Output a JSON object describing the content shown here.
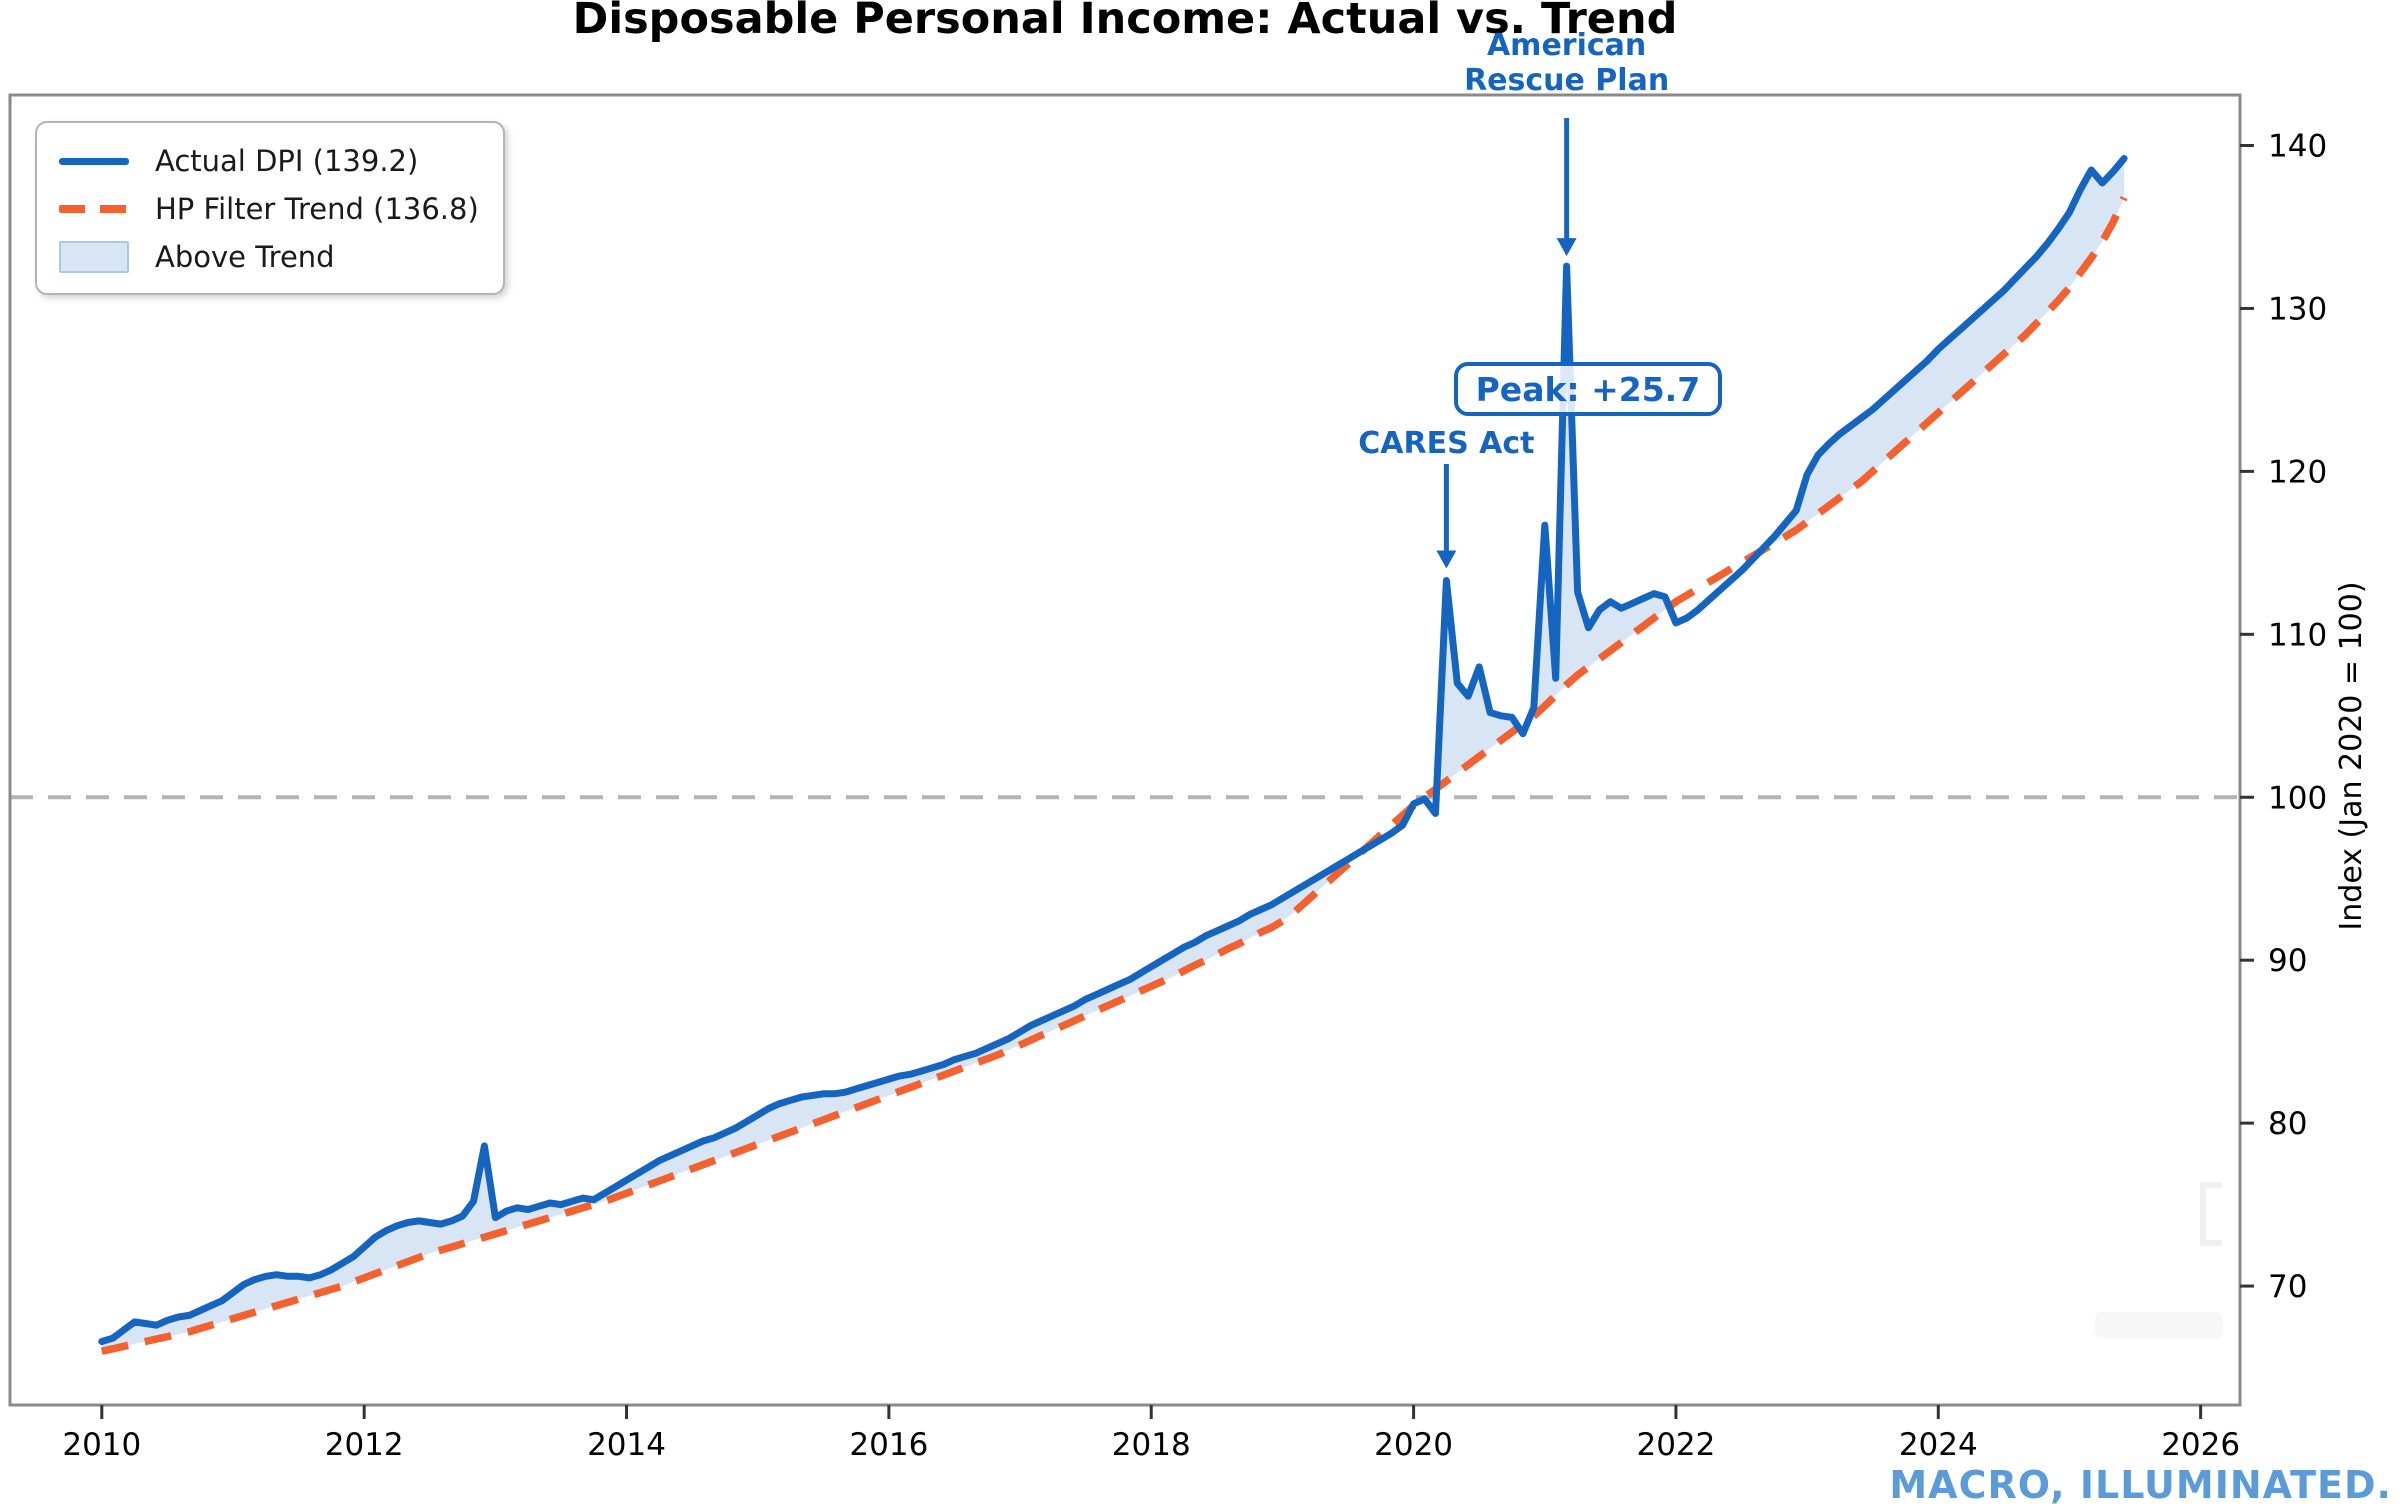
{
  "title": "Disposable Personal Income: Actual vs. Trend",
  "watermark": "MACRO, ILLUMINATED.",
  "colors": {
    "actual_line": "#1565C0",
    "trend_line": "#F4612E",
    "above_trend_fill": "#D8E5F5",
    "annotation_blue": "#1565C0",
    "baseline_gray": "#B3B3B3",
    "frame_gray": "#8A8A8A",
    "watermark_blue": "#5B9BD8",
    "tick_text": "#000000"
  },
  "legend": {
    "items": [
      {
        "label": "Actual DPI (139.2)",
        "swatch": "solid-blue-line"
      },
      {
        "label": "HP Filter Trend (136.8)",
        "swatch": "dashed-orange-line"
      },
      {
        "label": "Above Trend",
        "swatch": "light-blue-patch"
      }
    ]
  },
  "y_axis": {
    "label": "Index (Jan 2020 = 100)",
    "ticks": [
      70,
      80,
      90,
      100,
      110,
      120,
      130,
      140
    ],
    "side": "right"
  },
  "x_axis": {
    "ticks": [
      2010,
      2012,
      2014,
      2016,
      2018,
      2020,
      2022,
      2024,
      2026
    ]
  },
  "annotations": {
    "arp": {
      "line1": "American",
      "line2": "Rescue Plan",
      "target_month": "2021-03",
      "target_value": 132.6
    },
    "cares": {
      "label": "CARES Act",
      "target_month": "2020-04",
      "target_value": 113.3
    },
    "peak": {
      "label": "Peak: +25.7",
      "gap_value": 25.7,
      "target_month": "2021-03"
    }
  },
  "chart_data": {
    "type": "line",
    "title": "Disposable Personal Income: Actual vs. Trend",
    "xlabel": "",
    "ylabel": "Index (Jan 2020 = 100)",
    "frequency": "monthly",
    "x_start": 2010.0,
    "x_end": 2025.4167,
    "xlim": [
      2009.3,
      2026.3
    ],
    "ylim": [
      62.7,
      143.1
    ],
    "x_ticks": [
      2010,
      2012,
      2014,
      2016,
      2018,
      2020,
      2022,
      2024,
      2026
    ],
    "y_ticks": [
      70,
      80,
      90,
      100,
      110,
      120,
      130,
      140
    ],
    "baseline": {
      "value": 100,
      "style": "gray-dashed"
    },
    "grid": false,
    "legend_position": "upper-left",
    "fill_between": {
      "label": "Above Trend",
      "condition": "actual > trend",
      "color": "#D8E5F5"
    },
    "series": [
      {
        "name": "Actual DPI (139.2)",
        "color": "#1565C0",
        "style": "solid",
        "last_value": 139.2,
        "values": [
          66.6,
          66.8,
          67.3,
          67.8,
          67.7,
          67.6,
          67.9,
          68.1,
          68.2,
          68.5,
          68.8,
          69.1,
          69.6,
          70.1,
          70.4,
          70.6,
          70.7,
          70.6,
          70.6,
          70.5,
          70.7,
          71.0,
          71.4,
          71.8,
          72.4,
          73.0,
          73.4,
          73.7,
          73.9,
          74.0,
          73.9,
          73.8,
          74.0,
          74.3,
          75.2,
          78.6,
          74.2,
          74.6,
          74.8,
          74.7,
          74.9,
          75.1,
          75.0,
          75.2,
          75.4,
          75.3,
          75.7,
          76.1,
          76.5,
          76.9,
          77.3,
          77.7,
          78.0,
          78.3,
          78.6,
          78.9,
          79.1,
          79.4,
          79.7,
          80.1,
          80.5,
          80.9,
          81.2,
          81.4,
          81.6,
          81.7,
          81.8,
          81.8,
          81.9,
          82.1,
          82.3,
          82.5,
          82.7,
          82.9,
          83.0,
          83.2,
          83.4,
          83.6,
          83.9,
          84.1,
          84.3,
          84.6,
          84.9,
          85.2,
          85.6,
          86.0,
          86.3,
          86.6,
          86.9,
          87.2,
          87.6,
          87.9,
          88.2,
          88.5,
          88.8,
          89.2,
          89.6,
          90.0,
          90.4,
          90.8,
          91.1,
          91.5,
          91.8,
          92.1,
          92.4,
          92.8,
          93.1,
          93.4,
          93.8,
          94.2,
          94.6,
          95.0,
          95.4,
          95.8,
          96.2,
          96.6,
          97.0,
          97.4,
          97.8,
          98.3,
          99.6,
          99.9,
          99.0,
          113.3,
          107.0,
          106.2,
          108.0,
          105.2,
          105.0,
          104.9,
          103.9,
          105.5,
          116.7,
          107.3,
          132.6,
          112.6,
          110.4,
          111.5,
          112.0,
          111.6,
          111.9,
          112.2,
          112.5,
          112.3,
          110.7,
          111.0,
          111.5,
          112.1,
          112.7,
          113.3,
          113.9,
          114.6,
          115.3,
          116.0,
          116.8,
          117.6,
          119.8,
          121.0,
          121.7,
          122.3,
          122.8,
          123.3,
          123.8,
          124.4,
          125.0,
          125.6,
          126.2,
          126.8,
          127.5,
          128.1,
          128.7,
          129.3,
          129.9,
          130.5,
          131.1,
          131.8,
          132.5,
          133.2,
          134.0,
          134.9,
          135.9,
          137.3,
          138.5,
          137.7,
          138.4,
          139.2
        ]
      },
      {
        "name": "HP Filter Trend (136.8)",
        "color": "#F4612E",
        "style": "dashed",
        "last_value": 136.8,
        "values": [
          66.0,
          66.15,
          66.3,
          66.45,
          66.6,
          66.75,
          66.9,
          67.05,
          67.2,
          67.4,
          67.6,
          67.8,
          68.0,
          68.2,
          68.4,
          68.6,
          68.8,
          69.0,
          69.2,
          69.4,
          69.6,
          69.8,
          70.0,
          70.25,
          70.5,
          70.75,
          71.0,
          71.25,
          71.5,
          71.75,
          72.0,
          72.2,
          72.4,
          72.6,
          72.8,
          73.0,
          73.2,
          73.4,
          73.6,
          73.8,
          74.0,
          74.2,
          74.4,
          74.6,
          74.8,
          75.0,
          75.2,
          75.45,
          75.7,
          75.95,
          76.2,
          76.45,
          76.7,
          76.95,
          77.2,
          77.45,
          77.7,
          77.95,
          78.2,
          78.45,
          78.7,
          78.95,
          79.2,
          79.45,
          79.7,
          79.95,
          80.2,
          80.45,
          80.7,
          80.95,
          81.2,
          81.45,
          81.7,
          81.95,
          82.2,
          82.45,
          82.7,
          82.95,
          83.2,
          83.45,
          83.7,
          83.95,
          84.2,
          84.5,
          84.8,
          85.1,
          85.4,
          85.7,
          86.0,
          86.3,
          86.6,
          86.9,
          87.2,
          87.5,
          87.8,
          88.1,
          88.4,
          88.7,
          89.0,
          89.35,
          89.7,
          90.0,
          90.35,
          90.7,
          91.0,
          91.35,
          91.7,
          92.0,
          92.4,
          92.9,
          93.5,
          94.1,
          94.7,
          95.3,
          95.9,
          96.5,
          97.1,
          97.7,
          98.3,
          98.9,
          99.5,
          100.0,
          100.5,
          101.0,
          101.5,
          102.0,
          102.5,
          103.0,
          103.5,
          104.0,
          104.5,
          105.0,
          105.6,
          106.25,
          106.9,
          107.5,
          108.0,
          108.5,
          109.0,
          109.5,
          110.0,
          110.5,
          111.0,
          111.5,
          112.0,
          112.4,
          112.8,
          113.2,
          113.6,
          114.0,
          114.4,
          114.8,
          115.2,
          115.6,
          116.0,
          116.4,
          116.9,
          117.4,
          117.9,
          118.4,
          118.9,
          119.4,
          120.0,
          120.6,
          121.2,
          121.8,
          122.4,
          123.0,
          123.6,
          124.2,
          124.8,
          125.4,
          126.0,
          126.6,
          127.2,
          127.8,
          128.4,
          129.1,
          129.8,
          130.5,
          131.3,
          132.2,
          133.1,
          134.1,
          135.3,
          136.8
        ]
      }
    ]
  }
}
